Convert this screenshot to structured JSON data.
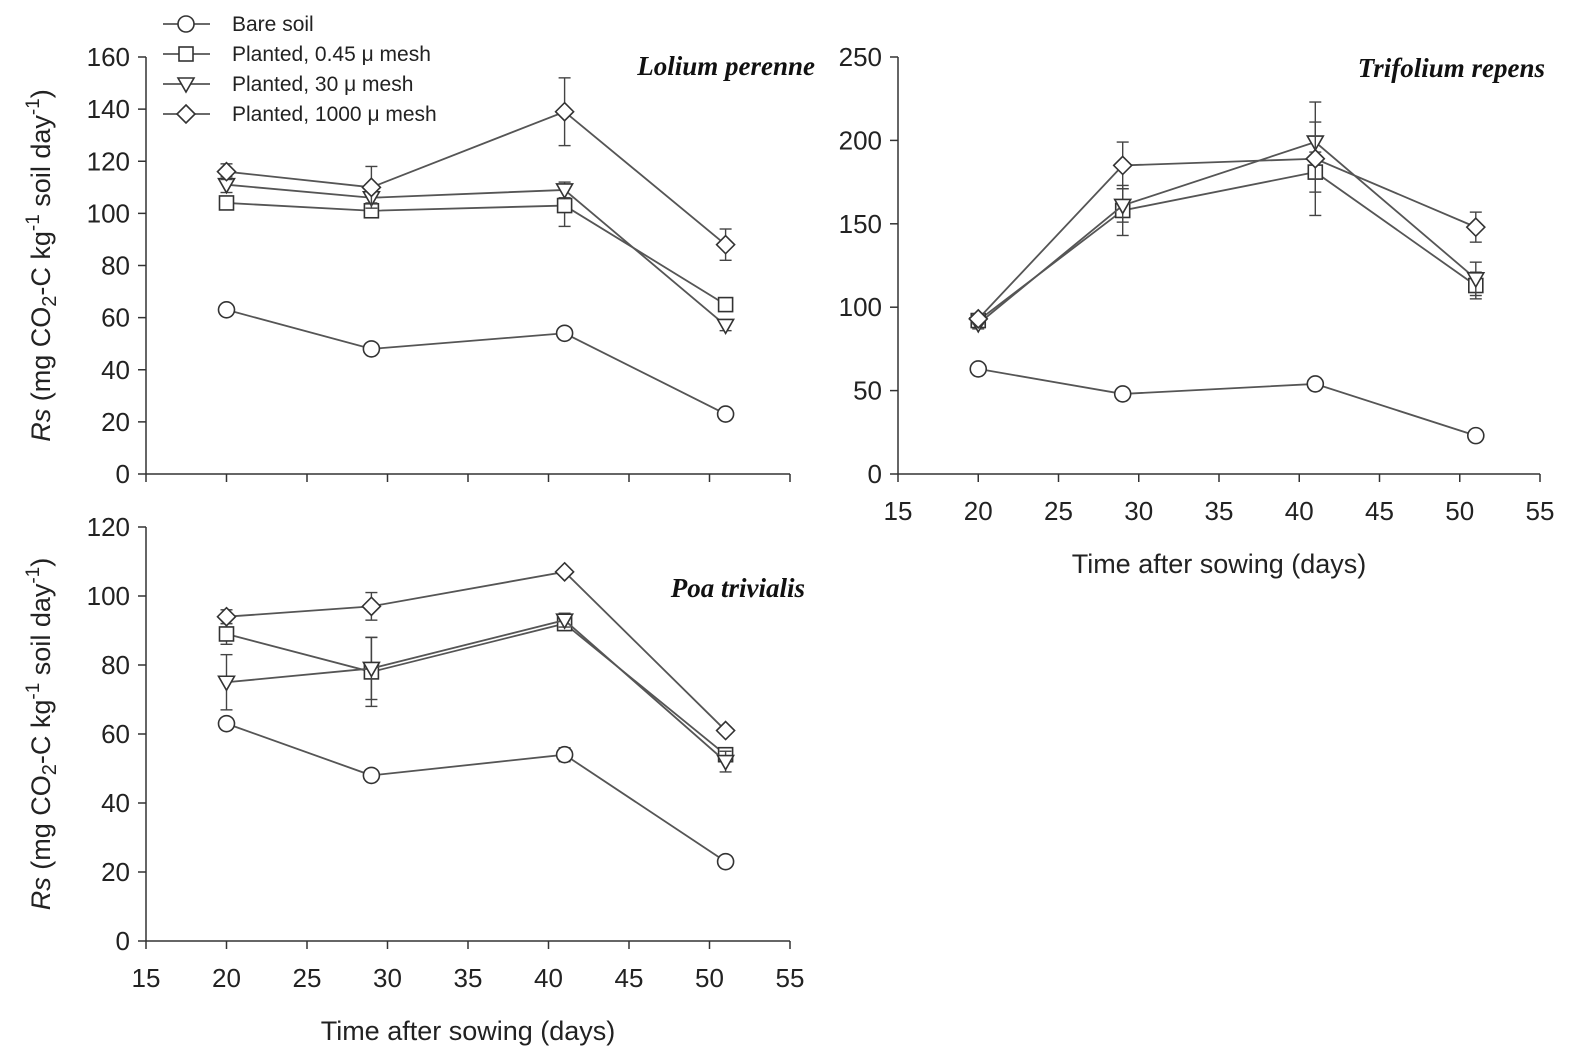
{
  "legend": {
    "entries": [
      {
        "label": "Bare soil",
        "marker": "circle"
      },
      {
        "label": "Planted, 0.45 μ mesh",
        "marker": "square"
      },
      {
        "label": "Planted, 30 μ mesh",
        "marker": "triangle-down"
      },
      {
        "label": "Planted, 1000 μ mesh",
        "marker": "diamond"
      }
    ],
    "placement": "top-left"
  },
  "chart_data": [
    {
      "type": "line",
      "title": "Lolium perenne",
      "xlabel": "",
      "ylabel": "Rs (mg CO2-C kg-1 soil day-1)",
      "xlim": [
        15,
        55
      ],
      "ylim": [
        0,
        160
      ],
      "xticks": [
        15,
        20,
        25,
        30,
        35,
        40,
        45,
        50,
        55
      ],
      "yticks": [
        0,
        20,
        40,
        60,
        80,
        100,
        120,
        140,
        160
      ],
      "show_x_tick_labels": false,
      "grid": false,
      "x": [
        20,
        29,
        41,
        51
      ],
      "series": [
        {
          "name": "Bare soil",
          "marker": "circle",
          "values": [
            63,
            48,
            54,
            23
          ],
          "errors": [
            1.5,
            1.5,
            2,
            1.5
          ]
        },
        {
          "name": "Planted, 0.45 μ mesh",
          "marker": "square",
          "values": [
            104,
            101,
            103,
            65
          ],
          "errors": [
            2,
            2,
            8,
            2
          ]
        },
        {
          "name": "Planted, 30 μ mesh",
          "marker": "triangle-down",
          "values": [
            111,
            106,
            109,
            57
          ],
          "errors": [
            3,
            2,
            3,
            2
          ]
        },
        {
          "name": "Planted, 1000 μ mesh",
          "marker": "diamond",
          "values": [
            116,
            110,
            139,
            88
          ],
          "errors": [
            3,
            8,
            13,
            6
          ]
        }
      ]
    },
    {
      "type": "line",
      "title": "Trifolium repens",
      "xlabel": "Time after sowing (days)",
      "ylabel": "",
      "xlim": [
        15,
        55
      ],
      "ylim": [
        0,
        250
      ],
      "xticks": [
        15,
        20,
        25,
        30,
        35,
        40,
        45,
        50,
        55
      ],
      "yticks": [
        0,
        50,
        100,
        150,
        200,
        250
      ],
      "show_x_tick_labels": true,
      "grid": false,
      "x": [
        20,
        29,
        41,
        51
      ],
      "series": [
        {
          "name": "Bare soil",
          "marker": "circle",
          "values": [
            63,
            48,
            54,
            23
          ],
          "errors": [
            1.5,
            1.5,
            2,
            1.5
          ]
        },
        {
          "name": "Planted, 0.45 μ mesh",
          "marker": "square",
          "values": [
            92,
            158,
            181,
            113
          ],
          "errors": [
            3,
            15,
            12,
            8
          ]
        },
        {
          "name": "Planted, 30 μ mesh",
          "marker": "triangle-down",
          "values": [
            90,
            161,
            199,
            117
          ],
          "errors": [
            3,
            10,
            12,
            10
          ]
        },
        {
          "name": "Planted, 1000 μ mesh",
          "marker": "diamond",
          "values": [
            93,
            185,
            189,
            148
          ],
          "errors": [
            3,
            14,
            34,
            9
          ]
        }
      ]
    },
    {
      "type": "line",
      "title": "Poa trivialis",
      "xlabel": "Time after sowing (days)",
      "ylabel": "Rs (mg CO2-C kg-1 soil day-1)",
      "xlim": [
        15,
        55
      ],
      "ylim": [
        0,
        120
      ],
      "xticks": [
        15,
        20,
        25,
        30,
        35,
        40,
        45,
        50,
        55
      ],
      "yticks": [
        0,
        20,
        40,
        60,
        80,
        100,
        120
      ],
      "show_x_tick_labels": true,
      "grid": false,
      "x": [
        20,
        29,
        41,
        51
      ],
      "series": [
        {
          "name": "Bare soil",
          "marker": "circle",
          "values": [
            63,
            48,
            54,
            23
          ],
          "errors": [
            1.5,
            1.5,
            2,
            1.5
          ]
        },
        {
          "name": "Planted, 0.45 μ mesh",
          "marker": "square",
          "values": [
            89,
            78,
            92,
            54
          ],
          "errors": [
            3,
            10,
            2,
            2
          ]
        },
        {
          "name": "Planted, 30 μ mesh",
          "marker": "triangle-down",
          "values": [
            75,
            79,
            93,
            52
          ],
          "errors": [
            8,
            9,
            2,
            3
          ]
        },
        {
          "name": "Planted, 1000 μ mesh",
          "marker": "diamond",
          "values": [
            94,
            97,
            107,
            61
          ],
          "errors": [
            2,
            4,
            1,
            1
          ]
        }
      ]
    }
  ]
}
